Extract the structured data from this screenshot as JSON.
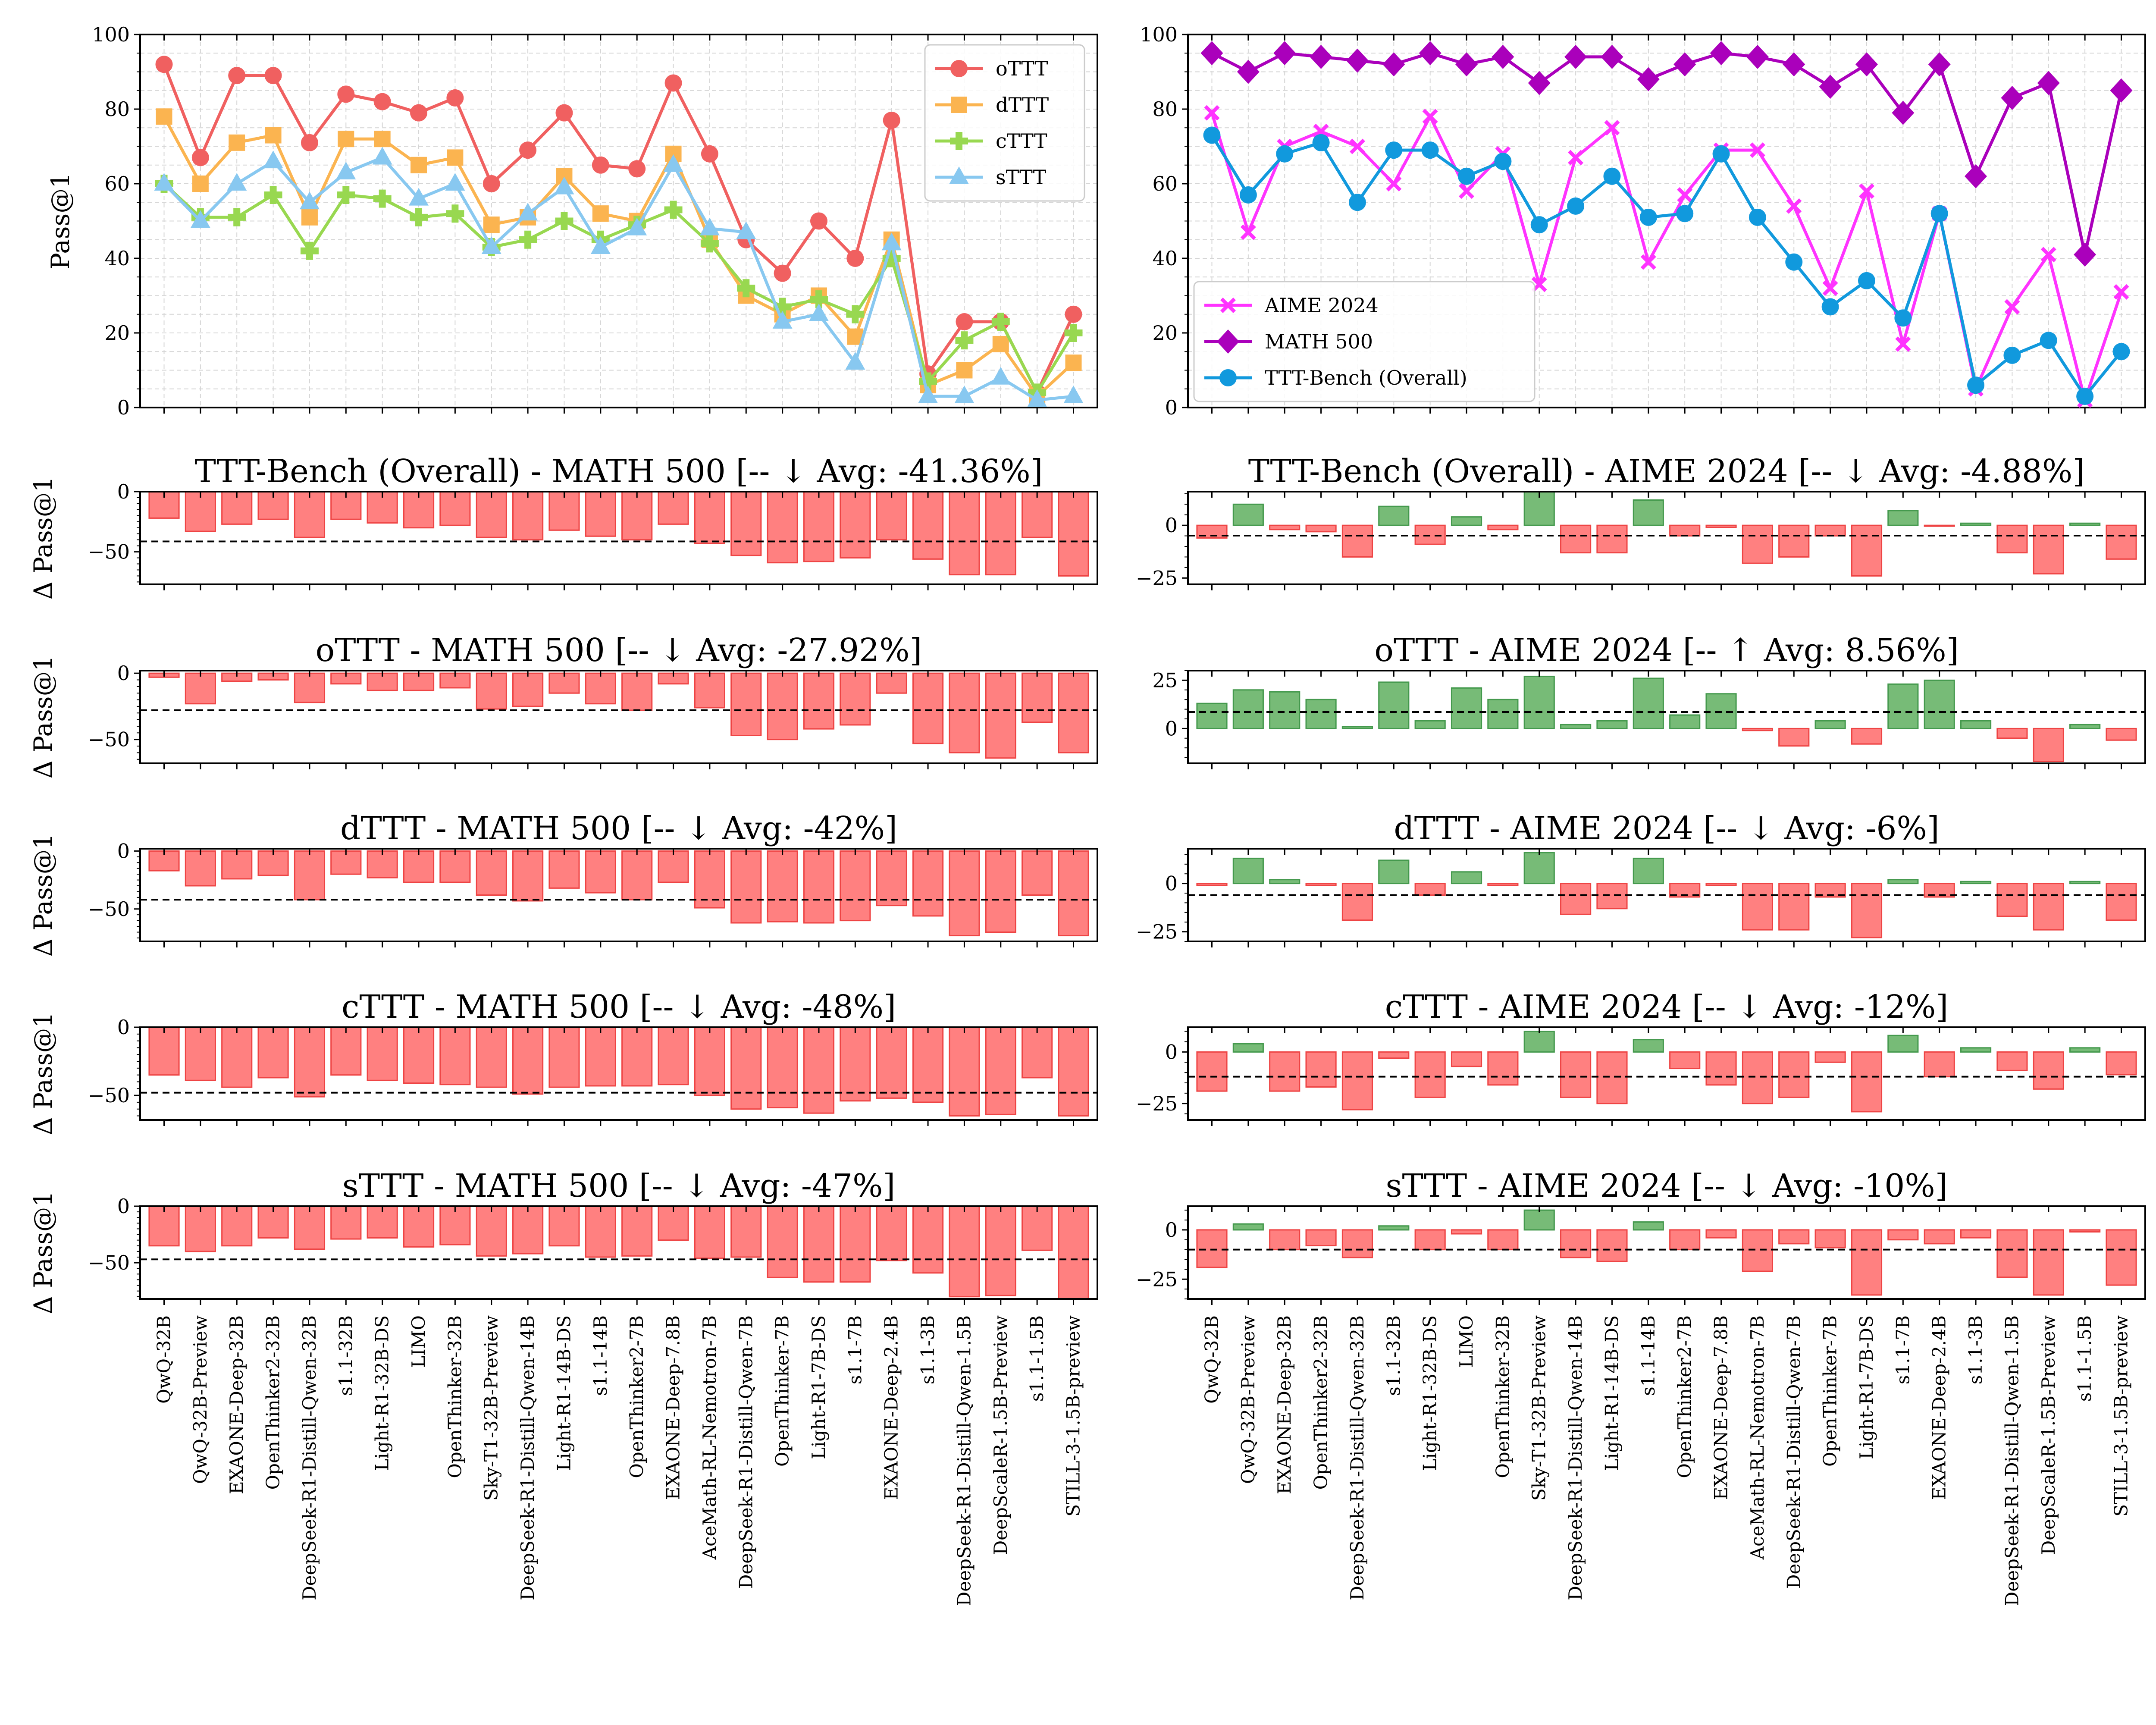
{
  "models": [
    "QwQ-32B",
    "QwQ-32B-Preview",
    "EXAONE-Deep-32B",
    "OpenThinker2-32B",
    "DeepSeek-R1-Distill-Qwen-32B",
    "s1.1-32B",
    "Light-R1-32B-DS",
    "LIMO",
    "OpenThinker-32B",
    "Sky-T1-32B-Preview",
    "DeepSeek-R1-Distill-Qwen-14B",
    "Light-R1-14B-DS",
    "s1.1-14B",
    "OpenThinker2-7B",
    "EXAONE-Deep-7.8B",
    "AceMath-RL-Nemotron-7B",
    "DeepSeek-R1-Distill-Qwen-7B",
    "OpenThinker-7B",
    "Light-R1-7B-DS",
    "s1.1-7B",
    "EXAONE-Deep-2.4B",
    "s1.1-3B",
    "DeepSeek-R1-Distill-Qwen-1.5B",
    "DeepScaleR-1.5B-Preview",
    "s1.1-1.5B",
    "STILL-3-1.5B-preview"
  ],
  "colors": {
    "oTTT": "#f06060",
    "dTTT": "#fbb450",
    "cTTT": "#98d850",
    "sTTT": "#88c8f0",
    "aime": "#ff33ff",
    "math": "#aa00bb",
    "ttt": "#1199dd",
    "neg_fill": "#ff8080",
    "neg_edge": "#ee4444",
    "pos_fill": "#77bb77",
    "pos_edge": "#44994d"
  },
  "chart_data": [
    {
      "type": "line",
      "id": "left-line",
      "ylabel": "Pass@1",
      "ylim": [
        0,
        100
      ],
      "yticks": [
        "0",
        "20",
        "40",
        "60",
        "80",
        "100"
      ],
      "legend": "top-right",
      "series": [
        {
          "name": "oTTT",
          "values": [
            92,
            67,
            89,
            89,
            71,
            84,
            82,
            79,
            83,
            60,
            69,
            79,
            65,
            64,
            87,
            68,
            45,
            36,
            50,
            40,
            77,
            9,
            23,
            23,
            4,
            25
          ]
        },
        {
          "name": "dTTT",
          "values": [
            78,
            60,
            71,
            73,
            51,
            72,
            72,
            65,
            67,
            49,
            51,
            62,
            52,
            50,
            68,
            45,
            30,
            25,
            30,
            19,
            45,
            6,
            10,
            17,
            3,
            12
          ]
        },
        {
          "name": "cTTT",
          "values": [
            60,
            51,
            51,
            57,
            42,
            57,
            56,
            51,
            52,
            43,
            45,
            50,
            45,
            49,
            53,
            44,
            32,
            27,
            29,
            25,
            40,
            7,
            18,
            23,
            4,
            20
          ]
        },
        {
          "name": "sTTT",
          "values": [
            60,
            50,
            60,
            66,
            55,
            63,
            67,
            56,
            60,
            43,
            52,
            59,
            43,
            48,
            65,
            48,
            47,
            23,
            25,
            12,
            44,
            3,
            3,
            8,
            2,
            3
          ]
        }
      ]
    },
    {
      "type": "line",
      "id": "right-line",
      "ylabel": "",
      "ylim": [
        0,
        100
      ],
      "yticks": [
        "0",
        "20",
        "40",
        "60",
        "80",
        "100"
      ],
      "legend": "bottom-left",
      "series": [
        {
          "name": "AIME 2024",
          "values": [
            79,
            47,
            70,
            74,
            70,
            60,
            78,
            58,
            68,
            33,
            67,
            75,
            39,
            57,
            69,
            69,
            54,
            32,
            58,
            17,
            52,
            5,
            27,
            41,
            2,
            31
          ]
        },
        {
          "name": "MATH 500",
          "values": [
            95,
            90,
            95,
            94,
            93,
            92,
            95,
            92,
            94,
            87,
            94,
            94,
            88,
            92,
            95,
            94,
            92,
            86,
            92,
            79,
            92,
            62,
            83,
            87,
            41,
            85
          ]
        },
        {
          "name": "TTT-Bench (Overall)",
          "values": [
            73,
            57,
            68,
            71,
            55,
            69,
            69,
            62,
            66,
            49,
            54,
            62,
            51,
            52,
            68,
            51,
            39,
            27,
            34,
            24,
            52,
            6,
            14,
            18,
            3,
            15
          ]
        }
      ]
    },
    {
      "type": "bar",
      "title": "TTT-Bench (Overall) - MATH 500 [-- ↓ Avg: -41.36%]",
      "ylabel": "Δ Pass@1",
      "ylim": [
        -77,
        0
      ],
      "yticks": [
        "0",
        "−50"
      ],
      "avg": -41.36,
      "values": [
        -22,
        -33,
        -27,
        -23,
        -38,
        -23,
        -26,
        -30,
        -28,
        -38,
        -40,
        -32,
        -37,
        -40,
        -27,
        -43,
        -53,
        -59,
        -58,
        -55,
        -40,
        -56,
        -69,
        -69,
        -38,
        -70
      ]
    },
    {
      "type": "bar",
      "title": "TTT-Bench (Overall) - AIME 2024 [-- ↓ Avg: -4.88%]",
      "ylabel": "",
      "ylim": [
        -28,
        16
      ],
      "yticks": [
        "0",
        "−25"
      ],
      "avg": -4.88,
      "values": [
        -6,
        10,
        -2,
        -3,
        -15,
        9,
        -9,
        4,
        -2,
        16,
        -13,
        -13,
        12,
        -5,
        -1,
        -18,
        -15,
        -5,
        -24,
        7,
        0,
        1,
        -13,
        -23,
        1,
        -16
      ]
    },
    {
      "type": "bar",
      "title": "oTTT - MATH 500 [-- ↓ Avg: -27.92%]",
      "ylabel": "Δ Pass@1",
      "ylim": [
        -68,
        2
      ],
      "yticks": [
        "0",
        "−50"
      ],
      "avg": -27.92,
      "values": [
        -3,
        -23,
        -6,
        -5,
        -22,
        -8,
        -13,
        -13,
        -11,
        -27,
        -25,
        -15,
        -23,
        -28,
        -8,
        -26,
        -47,
        -50,
        -42,
        -39,
        -15,
        -53,
        -60,
        -64,
        -37,
        -60
      ]
    },
    {
      "type": "bar",
      "title": "oTTT - AIME 2024 [-- ↑ Avg: 8.56%]",
      "ylabel": "",
      "ylim": [
        -18,
        30
      ],
      "yticks": [
        "0",
        "25"
      ],
      "avg": 8.56,
      "values": [
        13,
        20,
        19,
        15,
        1,
        24,
        4,
        21,
        15,
        27,
        2,
        4,
        26,
        7,
        18,
        -1,
        -9,
        4,
        -8,
        23,
        25,
        4,
        -5,
        -17,
        2,
        -6
      ]
    },
    {
      "type": "bar",
      "title": "dTTT - MATH 500 [-- ↓ Avg: -42%]",
      "ylabel": "Δ Pass@1",
      "ylim": [
        -78,
        2
      ],
      "yticks": [
        "0",
        "−50"
      ],
      "avg": -42,
      "values": [
        -17,
        -30,
        -24,
        -21,
        -42,
        -20,
        -23,
        -27,
        -27,
        -38,
        -43,
        -32,
        -36,
        -42,
        -27,
        -49,
        -62,
        -61,
        -62,
        -60,
        -47,
        -56,
        -73,
        -70,
        -38,
        -73
      ]
    },
    {
      "type": "bar",
      "title": "dTTT - AIME 2024 [-- ↓ Avg: -6%]",
      "ylabel": "",
      "ylim": [
        -30,
        18
      ],
      "yticks": [
        "0",
        "−25"
      ],
      "avg": -6,
      "values": [
        -1,
        13,
        2,
        -1,
        -19,
        12,
        -6,
        6,
        -1,
        16,
        -16,
        -13,
        13,
        -7,
        -1,
        -24,
        -24,
        -7,
        -28,
        2,
        -7,
        1,
        -17,
        -24,
        1,
        -19
      ]
    },
    {
      "type": "bar",
      "title": "cTTT - MATH 500 [-- ↓ Avg: -48%]",
      "ylabel": "Δ Pass@1",
      "ylim": [
        -68,
        0
      ],
      "yticks": [
        "0",
        "−50"
      ],
      "avg": -48,
      "values": [
        -35,
        -39,
        -44,
        -37,
        -51,
        -35,
        -39,
        -41,
        -42,
        -44,
        -49,
        -44,
        -43,
        -43,
        -42,
        -50,
        -60,
        -59,
        -63,
        -54,
        -52,
        -55,
        -65,
        -64,
        -37,
        -65
      ]
    },
    {
      "type": "bar",
      "title": "cTTT - AIME 2024 [-- ↓ Avg: -12%]",
      "ylabel": "",
      "ylim": [
        -33,
        12
      ],
      "yticks": [
        "0",
        "−25"
      ],
      "avg": -12,
      "values": [
        -19,
        4,
        -19,
        -17,
        -28,
        -3,
        -22,
        -7,
        -16,
        10,
        -22,
        -25,
        6,
        -8,
        -16,
        -25,
        -22,
        -5,
        -29,
        8,
        -12,
        2,
        -9,
        -18,
        2,
        -11
      ]
    },
    {
      "type": "bar",
      "title": "sTTT - MATH 500 [-- ↓ Avg: -47%]",
      "ylabel": "Δ Pass@1",
      "ylim": [
        -82,
        0
      ],
      "yticks": [
        "0",
        "−50"
      ],
      "avg": -47,
      "values": [
        -35,
        -40,
        -35,
        -28,
        -38,
        -29,
        -28,
        -36,
        -34,
        -44,
        -42,
        -35,
        -45,
        -44,
        -30,
        -46,
        -45,
        -63,
        -67,
        -67,
        -48,
        -59,
        -80,
        -79,
        -39,
        -82
      ]
    },
    {
      "type": "bar",
      "title": "sTTT - AIME 2024 [-- ↓ Avg: -10%]",
      "ylabel": "",
      "ylim": [
        -35,
        12
      ],
      "yticks": [
        "0",
        "−25"
      ],
      "avg": -10,
      "values": [
        -19,
        3,
        -10,
        -8,
        -14,
        2,
        -10,
        -2,
        -10,
        10,
        -14,
        -16,
        4,
        -10,
        -4,
        -21,
        -7,
        -9,
        -33,
        -5,
        -7,
        -4,
        -24,
        -33,
        -1,
        -28
      ]
    }
  ]
}
